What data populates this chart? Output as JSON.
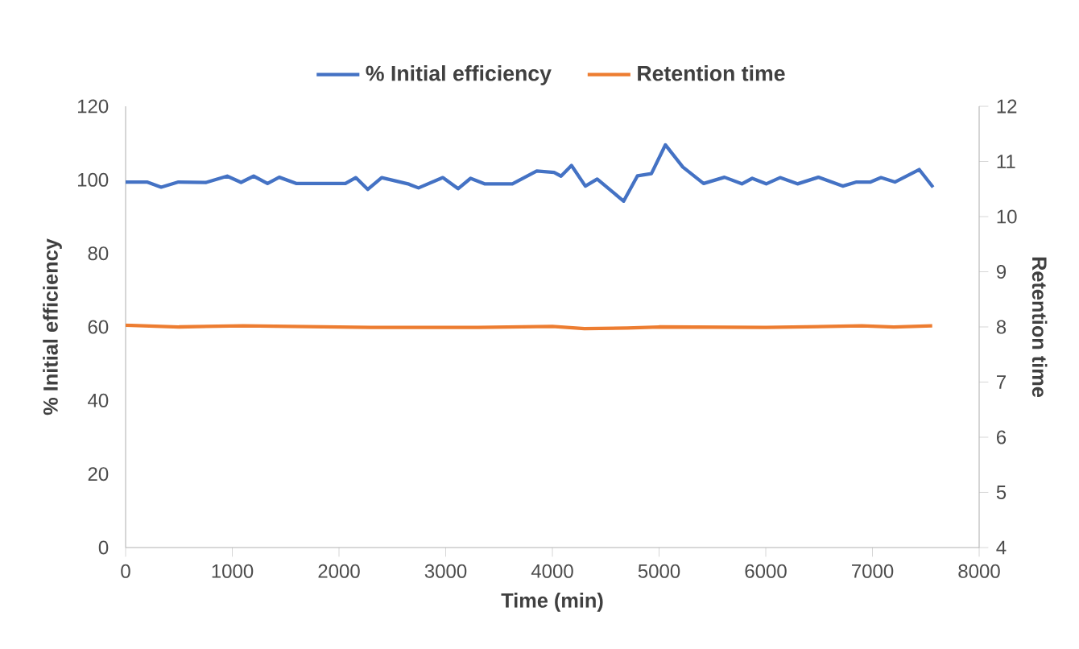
{
  "chart_data": {
    "type": "line",
    "xlabel": "Time (min)",
    "ylabel": "% Initial efficiency",
    "y2label": "Retention time",
    "legend": "top",
    "xlim": [
      0,
      8000
    ],
    "xticks": [
      0,
      1000,
      2000,
      3000,
      4000,
      5000,
      6000,
      7000,
      8000
    ],
    "ylim": [
      0,
      120
    ],
    "yticks": [
      0,
      20,
      40,
      60,
      80,
      100,
      120
    ],
    "y2lim": [
      4,
      12
    ],
    "y2ticks": [
      4,
      5,
      6,
      7,
      8,
      9,
      10,
      11,
      12
    ],
    "series": [
      {
        "name": "% Initial efficiency",
        "color": "#4472c4",
        "x": [
          0,
          200,
          333,
          495,
          756,
          952,
          1082,
          1200,
          1330,
          1440,
          1603,
          2060,
          2157,
          2270,
          2400,
          2647,
          2745,
          2973,
          3116,
          3233,
          3364,
          3625,
          3853,
          4016,
          4081,
          4179,
          4309,
          4420,
          4668,
          4798,
          4928,
          5059,
          5222,
          5417,
          5613,
          5776,
          5873,
          6004,
          6134,
          6297,
          6493,
          6721,
          6851,
          6982,
          7080,
          7210,
          7438,
          7568
        ],
        "values": [
          99.4,
          99.4,
          98,
          99.4,
          99.3,
          101,
          99.3,
          101,
          99,
          100.7,
          99,
          99,
          100.6,
          97.4,
          100.6,
          98.9,
          97.8,
          100.6,
          97.6,
          100.4,
          98.9,
          98.9,
          102.4,
          102,
          101,
          103.9,
          98.3,
          100.2,
          94.2,
          101.1,
          101.7,
          109.5,
          103.5,
          99,
          100.7,
          98.9,
          100.4,
          98.9,
          100.6,
          98.9,
          100.7,
          98.3,
          99.4,
          99.4,
          100.6,
          99.4,
          102.8,
          98
        ]
      },
      {
        "name": "Retention time",
        "color": "#ed7d31",
        "axis": "y2",
        "x": [
          0,
          500,
          1100,
          2300,
          3300,
          4000,
          4300,
          4700,
          5000,
          6000,
          6900,
          7200,
          7560
        ],
        "values": [
          8.03,
          8.0,
          8.02,
          7.99,
          7.99,
          8.01,
          7.97,
          7.98,
          8.0,
          7.99,
          8.02,
          8.0,
          8.02
        ]
      }
    ]
  }
}
